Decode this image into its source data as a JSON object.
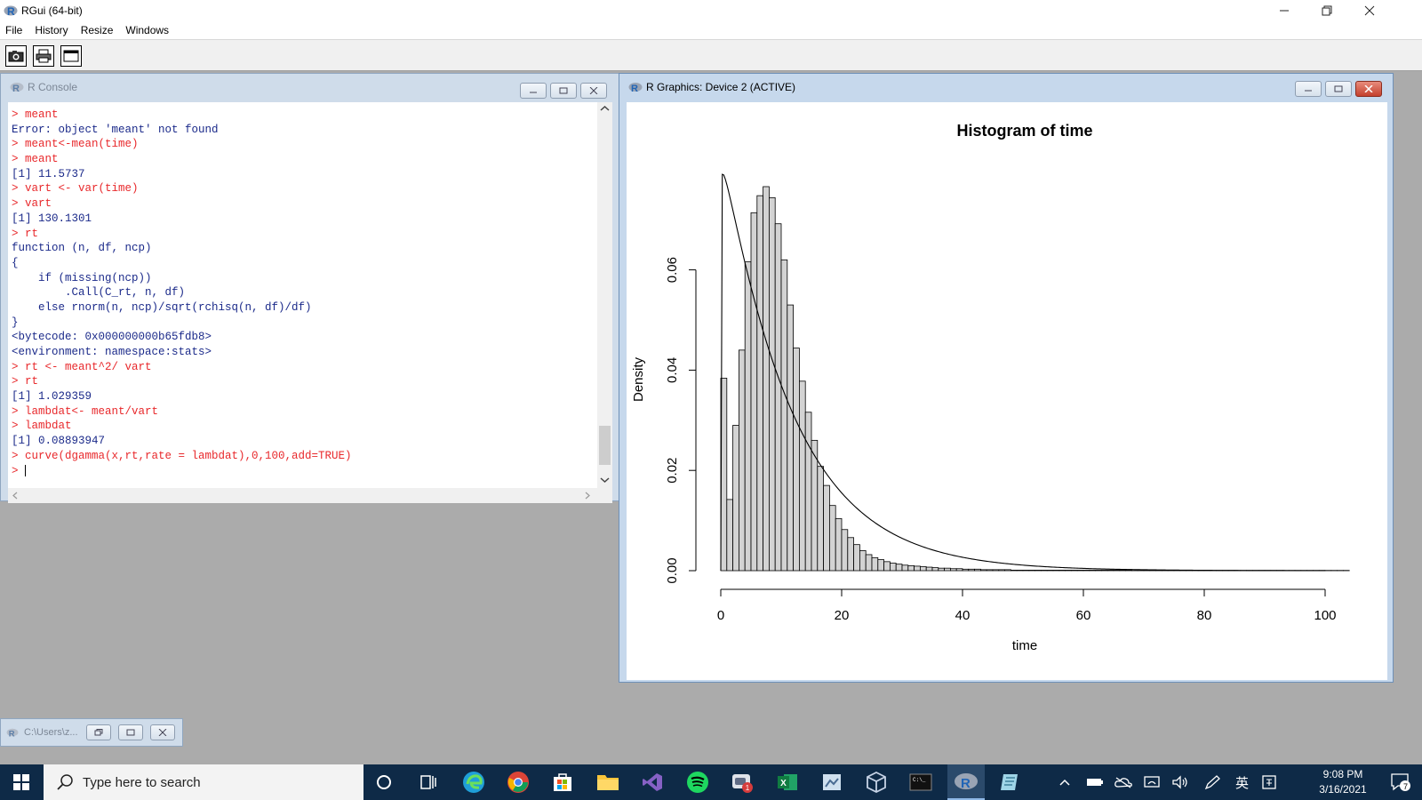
{
  "app": {
    "title": "RGui (64-bit)"
  },
  "menu": [
    "File",
    "History",
    "Resize",
    "Windows"
  ],
  "console": {
    "title": "R Console",
    "lines": [
      {
        "type": "cmd",
        "text": "> meant"
      },
      {
        "type": "out",
        "text": "Error: object 'meant' not found"
      },
      {
        "type": "cmd",
        "text": "> meant<-mean(time)"
      },
      {
        "type": "cmd",
        "text": "> meant"
      },
      {
        "type": "out",
        "text": "[1] 11.5737"
      },
      {
        "type": "cmd",
        "text": "> vart <- var(time)"
      },
      {
        "type": "cmd",
        "text": "> vart"
      },
      {
        "type": "out",
        "text": "[1] 130.1301"
      },
      {
        "type": "cmd",
        "text": "> rt"
      },
      {
        "type": "out",
        "text": "function (n, df, ncp)"
      },
      {
        "type": "out",
        "text": "{"
      },
      {
        "type": "out",
        "text": "    if (missing(ncp))"
      },
      {
        "type": "out",
        "text": "        .Call(C_rt, n, df)"
      },
      {
        "type": "out",
        "text": "    else rnorm(n, ncp)/sqrt(rchisq(n, df)/df)"
      },
      {
        "type": "out",
        "text": "}"
      },
      {
        "type": "out",
        "text": "<bytecode: 0x000000000b65fdb8>"
      },
      {
        "type": "out",
        "text": "<environment: namespace:stats>"
      },
      {
        "type": "cmd",
        "text": "> rt <- meant^2/ vart"
      },
      {
        "type": "cmd",
        "text": "> rt"
      },
      {
        "type": "out",
        "text": "[1] 1.029359"
      },
      {
        "type": "cmd",
        "text": "> lambdat<- meant/vart"
      },
      {
        "type": "cmd",
        "text": "> lambdat"
      },
      {
        "type": "out",
        "text": "[1] 0.08893947"
      },
      {
        "type": "cmd",
        "text": "> curve(dgamma(x,rt,rate = lambdat),0,100,add=TRUE)"
      }
    ],
    "prompt": "> "
  },
  "graphics": {
    "title": "R Graphics: Device 2 (ACTIVE)"
  },
  "chart_data": {
    "type": "bar",
    "title": "Histogram of time",
    "xlabel": "time",
    "ylabel": "Density",
    "x_ticks": [
      "0",
      "20",
      "40",
      "60",
      "80",
      "100"
    ],
    "y_ticks": [
      "0.00",
      "0.02",
      "0.04",
      "0.06"
    ],
    "xlim": [
      0,
      104
    ],
    "ylim": [
      0,
      0.077
    ],
    "bin_width": 1,
    "bin_start": 0,
    "values": [
      0.0384,
      0.0142,
      0.029,
      0.044,
      0.0616,
      0.0714,
      0.0748,
      0.0766,
      0.0744,
      0.0692,
      0.062,
      0.053,
      0.0444,
      0.0378,
      0.0316,
      0.026,
      0.0208,
      0.017,
      0.013,
      0.0104,
      0.0082,
      0.0066,
      0.0052,
      0.004,
      0.0032,
      0.0026,
      0.0022,
      0.0018,
      0.0015,
      0.0013,
      0.0011,
      0.001,
      0.0009,
      0.0008,
      0.0007,
      0.0006,
      0.0005,
      0.0005,
      0.0004,
      0.0004,
      0.0003,
      0.0003,
      0.0003,
      0.0002,
      0.0002,
      0.0002,
      0.0002,
      0.0002,
      0.0001,
      0.0001,
      0.0001,
      0.0001,
      0.0001,
      0.0001,
      0.0001,
      0.0001,
      0.0001,
      0.0001,
      0.0001,
      0.0001,
      0.0001,
      0.0001,
      0.0001,
      0.0001,
      0.0001,
      0.0001,
      0.0001,
      0.0001,
      5e-05,
      5e-05,
      5e-05,
      5e-05,
      5e-05,
      5e-05,
      5e-05,
      5e-05,
      5e-05,
      5e-05,
      5e-05,
      5e-05,
      5e-05,
      5e-05,
      5e-05,
      5e-05,
      5e-05,
      5e-05,
      5e-05,
      5e-05,
      5e-05,
      5e-05,
      5e-05,
      5e-05,
      5e-05,
      5e-05,
      5e-05,
      5e-05,
      5e-05,
      5e-05,
      5e-05,
      5e-05,
      5e-05,
      5e-05,
      5e-05,
      5e-05
    ],
    "curve": {
      "function": "dgamma(x,rt,rate = lambdat)",
      "shape": 1.029359,
      "rate": 0.08893947,
      "from": 0,
      "to": 100
    }
  },
  "minimized": {
    "title": "C:\\Users\\z..."
  },
  "taskbar": {
    "search_placeholder": "Type here to search",
    "time": "9:08 PM",
    "date": "3/16/2021",
    "notification_count": "7"
  }
}
